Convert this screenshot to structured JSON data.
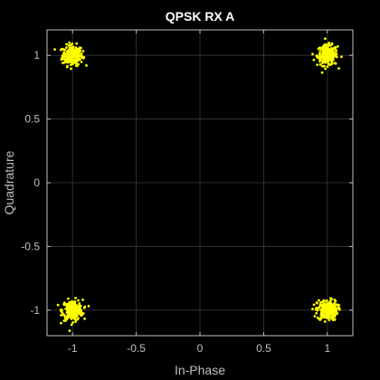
{
  "chart_data": {
    "type": "scatter",
    "title": "QPSK RX A",
    "xlabel": "In-Phase",
    "ylabel": "Quadrature",
    "xlim": [
      -1.2,
      1.2
    ],
    "ylim": [
      -1.2,
      1.2
    ],
    "x_ticks": [
      -1,
      -0.5,
      0,
      0.5,
      1
    ],
    "x_tick_labels": [
      "-1",
      "-0.5",
      "0",
      "0.5",
      "1"
    ],
    "y_ticks": [
      -1,
      -0.5,
      0,
      0.5,
      1
    ],
    "y_tick_labels": [
      "-1",
      "-0.5",
      "0",
      "0.5",
      "1"
    ],
    "grid": true,
    "legend": "none",
    "colors": {
      "background": "#000000",
      "axes_box": "#bfbfbf",
      "grid": "#3a3a3a",
      "marker": "#ffff00"
    },
    "series": [
      {
        "constellation_points": [
          {
            "x": -1,
            "y": 1
          },
          {
            "x": 1,
            "y": 1
          },
          {
            "x": -1,
            "y": -1
          },
          {
            "x": 1,
            "y": -1
          }
        ],
        "cluster_spread": 0.04,
        "points_per_cluster": 220
      }
    ]
  }
}
